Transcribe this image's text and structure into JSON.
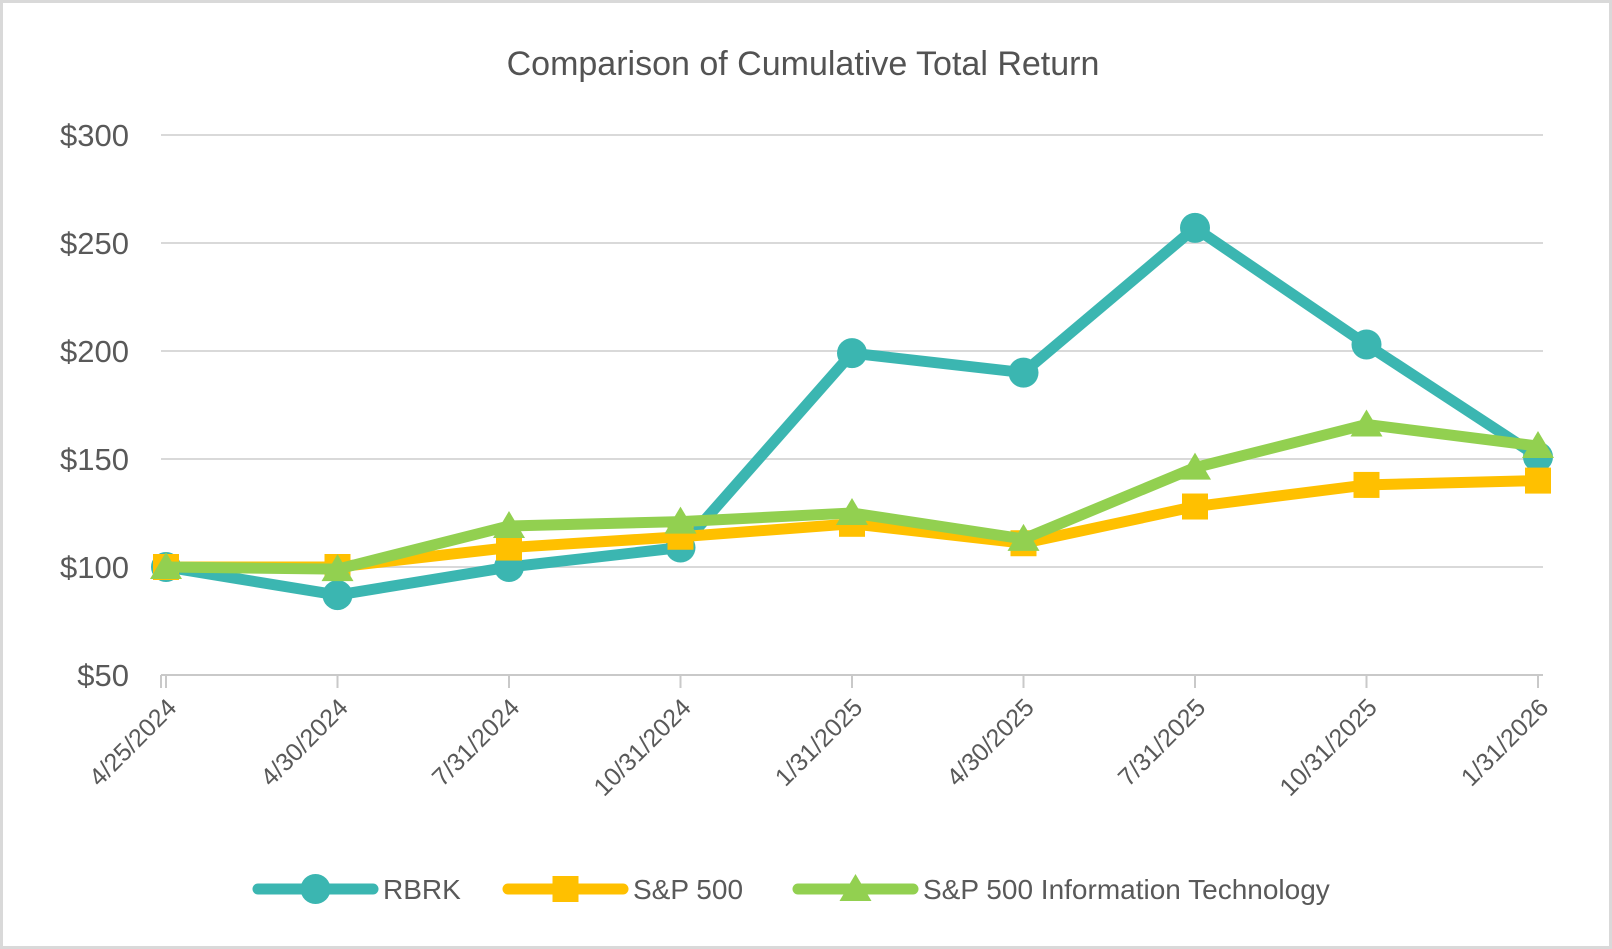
{
  "page": {
    "background_color": "#FFFFFF",
    "border_color": "#D9D9D9"
  },
  "chart_data": {
    "type": "line",
    "title": "Comparison of Cumulative Total Return",
    "categories": [
      "4/25/2024",
      "4/30/2024",
      "7/31/2024",
      "10/31/2024",
      "1/31/2025",
      "4/30/2025",
      "7/31/2025",
      "10/31/2025",
      "1/31/2026"
    ],
    "series": [
      {
        "name": "RBRK",
        "marker": "circle",
        "color": "#3BB6B1",
        "values": [
          100,
          87,
          100,
          109,
          199,
          190,
          257,
          203,
          151
        ]
      },
      {
        "name": "S&P 500",
        "marker": "square",
        "color": "#FFC000",
        "values": [
          100,
          100,
          109,
          114,
          120,
          111,
          128,
          138,
          140
        ]
      },
      {
        "name": "S&P 500 Information Technology",
        "marker": "triangle",
        "color": "#92D050",
        "values": [
          100,
          99,
          119,
          121,
          125,
          113,
          146,
          166,
          156
        ]
      }
    ],
    "y_axis": {
      "min": 50,
      "max": 300,
      "step": 50,
      "tick_prefix": "$",
      "tick_labels": [
        "$300",
        "$250",
        "$200",
        "$150",
        "$100",
        "$50"
      ]
    },
    "grid": true,
    "legend_position": "bottom",
    "colors": {
      "title_text": "#535353",
      "axis_text": "#595959",
      "gridline": "#D9D9D9",
      "axis_line": "#C9C9C9"
    }
  }
}
